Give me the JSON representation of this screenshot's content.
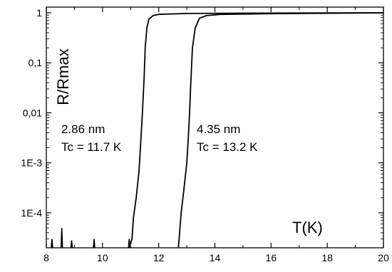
{
  "chart_data": {
    "type": "line",
    "title": "",
    "xlabel": "T(K)",
    "ylabel": "R/Rmax",
    "xlim": [
      8,
      20
    ],
    "ylim": [
      2e-05,
      1.3
    ],
    "yscale": "log",
    "grid": false,
    "xticks": [
      {
        "value": 8,
        "label": "8"
      },
      {
        "value": 10,
        "label": "10"
      },
      {
        "value": 12,
        "label": "12"
      },
      {
        "value": 14,
        "label": "14"
      },
      {
        "value": 16,
        "label": "16"
      },
      {
        "value": 18,
        "label": "18"
      },
      {
        "value": 20,
        "label": "20"
      }
    ],
    "yticks": [
      {
        "value": 1,
        "label": "1"
      },
      {
        "value": 0.1,
        "label": "0,1"
      },
      {
        "value": 0.01,
        "label": "0,01"
      },
      {
        "value": 0.001,
        "label": "1E-3"
      },
      {
        "value": 0.0001,
        "label": "1E-4"
      }
    ],
    "annotations": [
      {
        "lines": [
          "2.86 nm",
          "Tc = 11.7 K"
        ]
      },
      {
        "lines": [
          "4.35 nm",
          "Tc = 13.2 K"
        ]
      }
    ],
    "series": [
      {
        "points": [
          [
            10.95,
            2e-05
          ],
          [
            11.05,
            3e-05
          ],
          [
            11.1,
            8e-05
          ],
          [
            11.2,
            0.0002
          ],
          [
            11.3,
            0.0007
          ],
          [
            11.35,
            0.002
          ],
          [
            11.42,
            0.01
          ],
          [
            11.48,
            0.05
          ],
          [
            11.52,
            0.2
          ],
          [
            11.58,
            0.5
          ],
          [
            11.65,
            0.75
          ],
          [
            11.8,
            0.88
          ],
          [
            12.0,
            0.93
          ],
          [
            13.0,
            0.97
          ],
          [
            15.0,
            0.985
          ],
          [
            20.0,
            1.0
          ]
        ],
        "noise_spikes": [
          [
            8.2,
            3e-05
          ],
          [
            8.55,
            5e-05
          ],
          [
            8.9,
            2.8e-05
          ],
          [
            9.7,
            3e-05
          ],
          [
            10.95,
            3e-05
          ]
        ]
      },
      {
        "points": [
          [
            12.7,
            2e-05
          ],
          [
            12.8,
            0.0001
          ],
          [
            12.9,
            0.0003
          ],
          [
            13.0,
            0.001
          ],
          [
            13.05,
            0.003
          ],
          [
            13.1,
            0.01
          ],
          [
            13.15,
            0.05
          ],
          [
            13.2,
            0.2
          ],
          [
            13.3,
            0.5
          ],
          [
            13.45,
            0.78
          ],
          [
            13.7,
            0.88
          ],
          [
            14.2,
            0.93
          ],
          [
            16.0,
            0.96
          ],
          [
            20.0,
            1.0
          ]
        ]
      }
    ]
  }
}
